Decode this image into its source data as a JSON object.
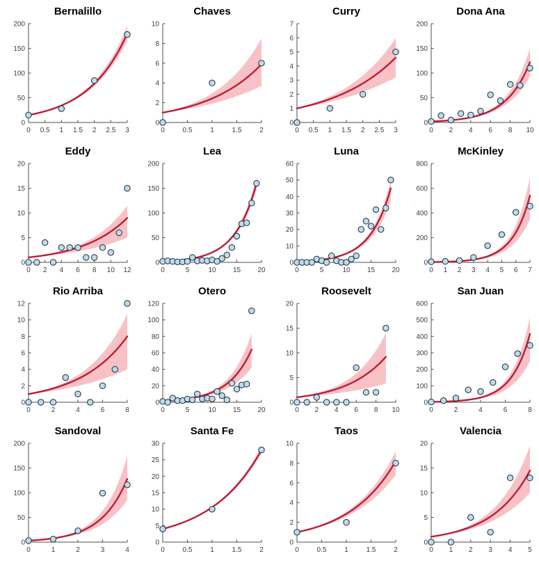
{
  "figure": {
    "description": "4x4 grid of county-level scatter plots with exponential fit curves and confidence bands",
    "rows": 4,
    "cols": 4
  },
  "style": {
    "curve_color": "#b81f38",
    "band_color": "#f8c1c6",
    "marker_fill": "#bedbea",
    "marker_edge": "#1c2b39",
    "axis_color": "#4d4d4d",
    "tick_label_color": "#3d3d3d",
    "title_color": "#000000",
    "background": "#ffffff"
  },
  "chart_data": [
    {
      "type": "scatter",
      "title": "Bernalillo",
      "xlim": [
        0,
        3
      ],
      "ylim": [
        0,
        200
      ],
      "xticks": [
        0,
        0.5,
        1,
        1.5,
        2,
        2.5,
        3
      ],
      "xtick_labels": [
        "0",
        "0.5",
        "1",
        "1.5",
        "2",
        "2.5",
        "3"
      ],
      "yticks": [
        0,
        50,
        100,
        150,
        200
      ],
      "ytick_labels": [
        "0",
        "50",
        "100",
        "150",
        "200"
      ],
      "points": {
        "x": [
          0,
          1,
          2,
          3
        ],
        "y": [
          15,
          28,
          85,
          178
        ]
      },
      "fit": {
        "model": "exponential",
        "x_end": 3,
        "y_start": 15,
        "y_end": 180
      },
      "band": {
        "lo_end": 165,
        "hi_end": 196
      }
    },
    {
      "type": "scatter",
      "title": "Chaves",
      "xlim": [
        0,
        2
      ],
      "ylim": [
        0,
        10
      ],
      "xticks": [
        0,
        0.5,
        1,
        1.5,
        2
      ],
      "xtick_labels": [
        "0",
        "0.5",
        "1",
        "1.5",
        "2"
      ],
      "yticks": [
        0,
        2,
        4,
        6,
        8,
        10
      ],
      "ytick_labels": [
        "0",
        "2",
        "4",
        "6",
        "8",
        "10"
      ],
      "points": {
        "x": [
          0,
          1,
          2
        ],
        "y": [
          0,
          4,
          6
        ]
      },
      "fit": {
        "model": "exponential",
        "x_end": 2,
        "y_start": 1,
        "y_end": 5.9
      },
      "band": {
        "lo_end": 3.7,
        "hi_end": 8.5
      }
    },
    {
      "type": "scatter",
      "title": "Curry",
      "xlim": [
        0,
        3
      ],
      "ylim": [
        0,
        7
      ],
      "xticks": [
        0,
        0.5,
        1,
        1.5,
        2,
        2.5,
        3
      ],
      "xtick_labels": [
        "0",
        "0.5",
        "1",
        "1.5",
        "2",
        "2.5",
        "3"
      ],
      "yticks": [
        0,
        1,
        2,
        3,
        4,
        5,
        6,
        7
      ],
      "ytick_labels": [
        "0",
        "1",
        "2",
        "3",
        "4",
        "5",
        "6",
        "7"
      ],
      "points": {
        "x": [
          0,
          1,
          2,
          3
        ],
        "y": [
          0,
          1,
          2,
          5
        ]
      },
      "fit": {
        "model": "exponential",
        "x_end": 3,
        "y_start": 1,
        "y_end": 4.6
      },
      "band": {
        "lo_end": 3.2,
        "hi_end": 6.0
      }
    },
    {
      "type": "scatter",
      "title": "Dona Ana",
      "xlim": [
        0,
        10
      ],
      "ylim": [
        0,
        200
      ],
      "xticks": [
        0,
        2,
        4,
        6,
        8,
        10
      ],
      "xtick_labels": [
        "0",
        "2",
        "4",
        "6",
        "8",
        "10"
      ],
      "yticks": [
        0,
        50,
        100,
        150,
        200
      ],
      "ytick_labels": [
        "0",
        "50",
        "100",
        "150",
        "200"
      ],
      "points": {
        "x": [
          0,
          1,
          2,
          3,
          4,
          5,
          6,
          7,
          8,
          9,
          10
        ],
        "y": [
          2,
          14,
          5,
          18,
          15,
          23,
          56,
          44,
          77,
          75,
          110
        ]
      },
      "fit": {
        "model": "exponential",
        "x_end": 10,
        "y_start": 2,
        "y_end": 122
      },
      "band": {
        "lo_end": 93,
        "hi_end": 150
      }
    },
    {
      "type": "scatter",
      "title": "Eddy",
      "xlim": [
        0,
        12
      ],
      "ylim": [
        0,
        20
      ],
      "xticks": [
        0,
        2,
        4,
        6,
        8,
        10,
        12
      ],
      "xtick_labels": [
        "0",
        "2",
        "4",
        "6",
        "8",
        "10",
        "12"
      ],
      "yticks": [
        0,
        5,
        10,
        15,
        20
      ],
      "ytick_labels": [
        "0",
        "5",
        "10",
        "15",
        "20"
      ],
      "points": {
        "x": [
          0,
          1,
          2,
          3,
          4,
          5,
          6,
          7,
          8,
          9,
          10,
          11,
          12
        ],
        "y": [
          0,
          0,
          4,
          0,
          3,
          3,
          3,
          1,
          1,
          3,
          2,
          6,
          15
        ]
      },
      "fit": {
        "model": "exponential",
        "x_end": 12,
        "y_start": 1,
        "y_end": 9
      },
      "band": {
        "lo_end": 5,
        "hi_end": 11.5
      }
    },
    {
      "type": "scatter",
      "title": "Lea",
      "xlim": [
        0,
        20
      ],
      "ylim": [
        0,
        200
      ],
      "xticks": [
        0,
        5,
        10,
        15,
        20
      ],
      "xtick_labels": [
        "0",
        "5",
        "10",
        "15",
        "20"
      ],
      "yticks": [
        0,
        50,
        100,
        150,
        200
      ],
      "ytick_labels": [
        "0",
        "50",
        "100",
        "150",
        "200"
      ],
      "points": {
        "x": [
          0,
          1,
          2,
          3,
          4,
          5,
          6,
          7,
          8,
          9,
          10,
          11,
          12,
          13,
          14,
          15,
          16,
          17,
          18,
          19
        ],
        "y": [
          2,
          3,
          2,
          1,
          1,
          2,
          10,
          3,
          4,
          3,
          5,
          2,
          8,
          15,
          30,
          53,
          78,
          80,
          120,
          160
        ]
      },
      "fit": {
        "model": "exponential",
        "x_end": 19,
        "y_start": 2,
        "y_end": 160
      },
      "band": {
        "lo_end": 147,
        "hi_end": 173
      }
    },
    {
      "type": "scatter",
      "title": "Luna",
      "xlim": [
        0,
        20
      ],
      "ylim": [
        0,
        60
      ],
      "xticks": [
        0,
        5,
        10,
        15,
        20
      ],
      "xtick_labels": [
        "0",
        "5",
        "10",
        "15",
        "20"
      ],
      "yticks": [
        0,
        10,
        20,
        30,
        40,
        50,
        60
      ],
      "ytick_labels": [
        "0",
        "10",
        "20",
        "30",
        "40",
        "50",
        "60"
      ],
      "points": {
        "x": [
          0,
          1,
          2,
          3,
          4,
          5,
          6,
          7,
          8,
          9,
          10,
          11,
          12,
          13,
          14,
          15,
          16,
          17,
          18,
          19
        ],
        "y": [
          0,
          0,
          0,
          0,
          2,
          1,
          0,
          4,
          1,
          0,
          0,
          2,
          4,
          20,
          25,
          22,
          32,
          20,
          33,
          50
        ]
      },
      "fit": {
        "model": "exponential",
        "x_end": 19,
        "y_start": 0.5,
        "y_end": 45
      },
      "band": {
        "lo_end": 37,
        "hi_end": 50
      }
    },
    {
      "type": "scatter",
      "title": "McKinley",
      "xlim": [
        0,
        7
      ],
      "ylim": [
        0,
        800
      ],
      "xticks": [
        0,
        1,
        2,
        3,
        4,
        5,
        6,
        7
      ],
      "xtick_labels": [
        "0",
        "1",
        "2",
        "3",
        "4",
        "5",
        "6",
        "7"
      ],
      "yticks": [
        0,
        200,
        400,
        600,
        800
      ],
      "ytick_labels": [
        "0",
        "200",
        "400",
        "600",
        "800"
      ],
      "points": {
        "x": [
          0,
          1,
          2,
          3,
          4,
          5,
          6,
          7
        ],
        "y": [
          5,
          8,
          15,
          40,
          135,
          225,
          405,
          455
        ]
      },
      "fit": {
        "model": "exponential",
        "x_end": 7,
        "y_start": 2,
        "y_end": 540
      },
      "band": {
        "lo_end": 350,
        "hi_end": 690
      }
    },
    {
      "type": "scatter",
      "title": "Rio Arriba",
      "xlim": [
        0,
        8
      ],
      "ylim": [
        0,
        12
      ],
      "xticks": [
        0,
        2,
        4,
        6,
        8
      ],
      "xtick_labels": [
        "0",
        "2",
        "4",
        "6",
        "8"
      ],
      "yticks": [
        0,
        2,
        4,
        6,
        8,
        10,
        12
      ],
      "ytick_labels": [
        "0",
        "2",
        "4",
        "6",
        "8",
        "10",
        "12"
      ],
      "points": {
        "x": [
          0,
          1,
          2,
          3,
          4,
          5,
          6,
          7,
          8
        ],
        "y": [
          0,
          0,
          0,
          3,
          1,
          0,
          2,
          4,
          12
        ]
      },
      "fit": {
        "model": "exponential",
        "x_end": 8,
        "y_start": 1,
        "y_end": 8
      },
      "band": {
        "lo_end": 4,
        "hi_end": 10.7
      }
    },
    {
      "type": "scatter",
      "title": "Otero",
      "xlim": [
        0,
        20
      ],
      "ylim": [
        0,
        120
      ],
      "xticks": [
        0,
        5,
        10,
        15,
        20
      ],
      "xtick_labels": [
        "0",
        "5",
        "10",
        "15",
        "20"
      ],
      "yticks": [
        0,
        20,
        40,
        60,
        80,
        100,
        120
      ],
      "ytick_labels": [
        "0",
        "20",
        "40",
        "60",
        "80",
        "100",
        "120"
      ],
      "points": {
        "x": [
          0,
          1,
          2,
          3,
          4,
          5,
          6,
          7,
          8,
          9,
          10,
          11,
          12,
          13,
          14,
          15,
          16,
          17,
          18
        ],
        "y": [
          1,
          0,
          5,
          2,
          2,
          4,
          3,
          10,
          4,
          5,
          4,
          13,
          8,
          3,
          23,
          16,
          21,
          22,
          111
        ]
      },
      "fit": {
        "model": "exponential",
        "x_end": 18,
        "y_start": 1.5,
        "y_end": 64
      },
      "band": {
        "lo_end": 42,
        "hi_end": 84
      }
    },
    {
      "type": "scatter",
      "title": "Roosevelt",
      "xlim": [
        0,
        10
      ],
      "ylim": [
        0,
        20
      ],
      "xticks": [
        0,
        2,
        4,
        6,
        8,
        10
      ],
      "xtick_labels": [
        "0",
        "2",
        "4",
        "6",
        "8",
        "10"
      ],
      "yticks": [
        0,
        5,
        10,
        15,
        20
      ],
      "ytick_labels": [
        "0",
        "5",
        "10",
        "15",
        "20"
      ],
      "points": {
        "x": [
          0,
          1,
          2,
          3,
          4,
          5,
          6,
          7,
          8,
          9
        ],
        "y": [
          0,
          0,
          1,
          0,
          0,
          0,
          7,
          2,
          2,
          15
        ]
      },
      "fit": {
        "model": "exponential",
        "x_end": 9,
        "y_start": 1,
        "y_end": 9.2
      },
      "band": {
        "lo_end": 3.8,
        "hi_end": 14
      }
    },
    {
      "type": "scatter",
      "title": "San Juan",
      "xlim": [
        0,
        8
      ],
      "ylim": [
        0,
        600
      ],
      "xticks": [
        0,
        2,
        4,
        6,
        8
      ],
      "xtick_labels": [
        "0",
        "2",
        "4",
        "6",
        "8"
      ],
      "yticks": [
        0,
        100,
        200,
        300,
        400,
        500,
        600
      ],
      "ytick_labels": [
        "0",
        "100",
        "200",
        "300",
        "400",
        "500",
        "600"
      ],
      "points": {
        "x": [
          0,
          1,
          2,
          3,
          4,
          5,
          6,
          7,
          8
        ],
        "y": [
          2,
          10,
          25,
          75,
          65,
          120,
          215,
          295,
          345
        ]
      },
      "fit": {
        "model": "exponential",
        "x_end": 8,
        "y_start": 2,
        "y_end": 415
      },
      "band": {
        "lo_end": 250,
        "hi_end": 520
      }
    },
    {
      "type": "scatter",
      "title": "Sandoval",
      "xlim": [
        0,
        4
      ],
      "ylim": [
        0,
        200
      ],
      "xticks": [
        0,
        1,
        2,
        3,
        4
      ],
      "xtick_labels": [
        "0",
        "1",
        "2",
        "3",
        "4"
      ],
      "yticks": [
        0,
        50,
        100,
        150,
        200
      ],
      "ytick_labels": [
        "0",
        "50",
        "100",
        "150",
        "200"
      ],
      "points": {
        "x": [
          0,
          1,
          2,
          3,
          4
        ],
        "y": [
          3,
          6,
          23,
          99,
          116
        ]
      },
      "fit": {
        "model": "exponential",
        "x_end": 4,
        "y_start": 3,
        "y_end": 128
      },
      "band": {
        "lo_end": 85,
        "hi_end": 175
      }
    },
    {
      "type": "scatter",
      "title": "Santa Fe",
      "xlim": [
        0,
        2
      ],
      "ylim": [
        0,
        30
      ],
      "xticks": [
        0,
        0.5,
        1,
        1.5,
        2
      ],
      "xtick_labels": [
        "0",
        "0.5",
        "1",
        "1.5",
        "2"
      ],
      "yticks": [
        0,
        5,
        10,
        15,
        20,
        25,
        30
      ],
      "ytick_labels": [
        "0",
        "5",
        "10",
        "15",
        "20",
        "25",
        "30"
      ],
      "points": {
        "x": [
          0,
          1,
          2
        ],
        "y": [
          4,
          10,
          28
        ]
      },
      "fit": {
        "model": "exponential",
        "x_end": 2,
        "y_start": 4,
        "y_end": 28
      },
      "band": {
        "lo_end": 27,
        "hi_end": 29
      }
    },
    {
      "type": "scatter",
      "title": "Taos",
      "xlim": [
        0,
        2
      ],
      "ylim": [
        0,
        10
      ],
      "xticks": [
        0,
        0.5,
        1,
        1.5,
        2
      ],
      "xtick_labels": [
        "0",
        "0.5",
        "1",
        "1.5",
        "2"
      ],
      "yticks": [
        0,
        2,
        4,
        6,
        8,
        10
      ],
      "ytick_labels": [
        "0",
        "2",
        "4",
        "6",
        "8",
        "10"
      ],
      "points": {
        "x": [
          0,
          1,
          2
        ],
        "y": [
          1,
          2,
          8
        ]
      },
      "fit": {
        "model": "exponential",
        "x_end": 2,
        "y_start": 1,
        "y_end": 8.2
      },
      "band": {
        "lo_end": 6.8,
        "hi_end": 9.2
      }
    },
    {
      "type": "scatter",
      "title": "Valencia",
      "xlim": [
        0,
        5
      ],
      "ylim": [
        0,
        20
      ],
      "xticks": [
        0,
        1,
        2,
        3,
        4,
        5
      ],
      "xtick_labels": [
        "0",
        "1",
        "2",
        "3",
        "4",
        "5"
      ],
      "yticks": [
        0,
        5,
        10,
        15,
        20
      ],
      "ytick_labels": [
        "0",
        "5",
        "10",
        "15",
        "20"
      ],
      "points": {
        "x": [
          0,
          1,
          2,
          3,
          4,
          5
        ],
        "y": [
          0,
          0,
          5,
          2,
          13,
          13
        ]
      },
      "fit": {
        "model": "exponential",
        "x_end": 5,
        "y_start": 1.1,
        "y_end": 14.5
      },
      "band": {
        "lo_end": 10,
        "hi_end": 19.5
      }
    }
  ]
}
